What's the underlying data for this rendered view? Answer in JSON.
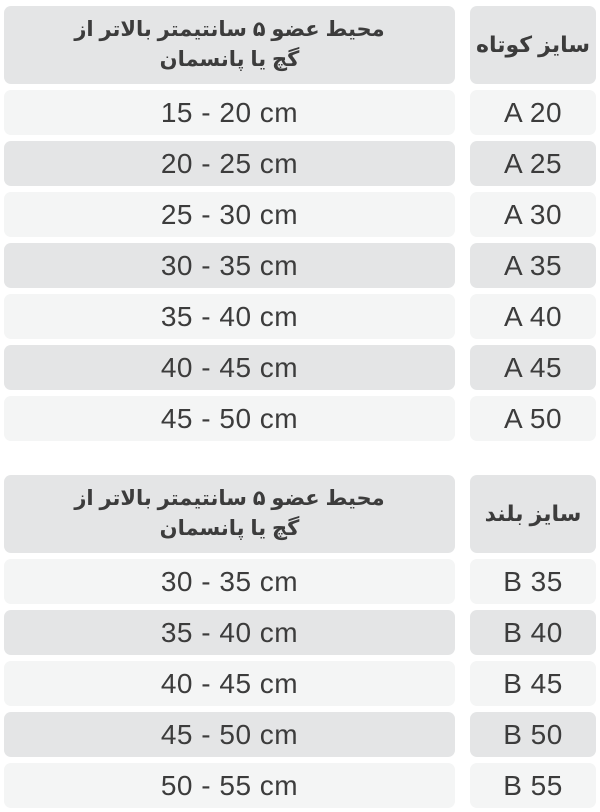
{
  "colors": {
    "cell_light": "#f4f5f5",
    "cell_dark": "#e4e5e6",
    "text": "#3c3c3c",
    "page_bg": "#ffffff"
  },
  "tables": [
    {
      "title": "short-size-table",
      "header": {
        "measure_label": "محیط عضو ۵ سانتیمتر بالاتر از\nگچ یا پانسمان",
        "size_label": "سایز کوتاه"
      },
      "rows": [
        {
          "range": "15 - 20 cm",
          "size": "A 20"
        },
        {
          "range": "20 - 25 cm",
          "size": "A 25"
        },
        {
          "range": "25 - 30 cm",
          "size": "A 30"
        },
        {
          "range": "30 - 35 cm",
          "size": "A 35"
        },
        {
          "range": "35 - 40 cm",
          "size": "A 40"
        },
        {
          "range": "40 - 45 cm",
          "size": "A 45"
        },
        {
          "range": "45 - 50 cm",
          "size": "A 50"
        }
      ]
    },
    {
      "title": "long-size-table",
      "header": {
        "measure_label": "محیط عضو ۵ سانتیمتر بالاتر از\nگچ یا پانسمان",
        "size_label": "سایز بلند"
      },
      "rows": [
        {
          "range": "30 - 35 cm",
          "size": "B 35"
        },
        {
          "range": "35 - 40 cm",
          "size": "B 40"
        },
        {
          "range": "40 - 45 cm",
          "size": "B 45"
        },
        {
          "range": "45 - 50 cm",
          "size": "B 50"
        },
        {
          "range": "50 - 55 cm",
          "size": "B 55"
        }
      ]
    }
  ]
}
